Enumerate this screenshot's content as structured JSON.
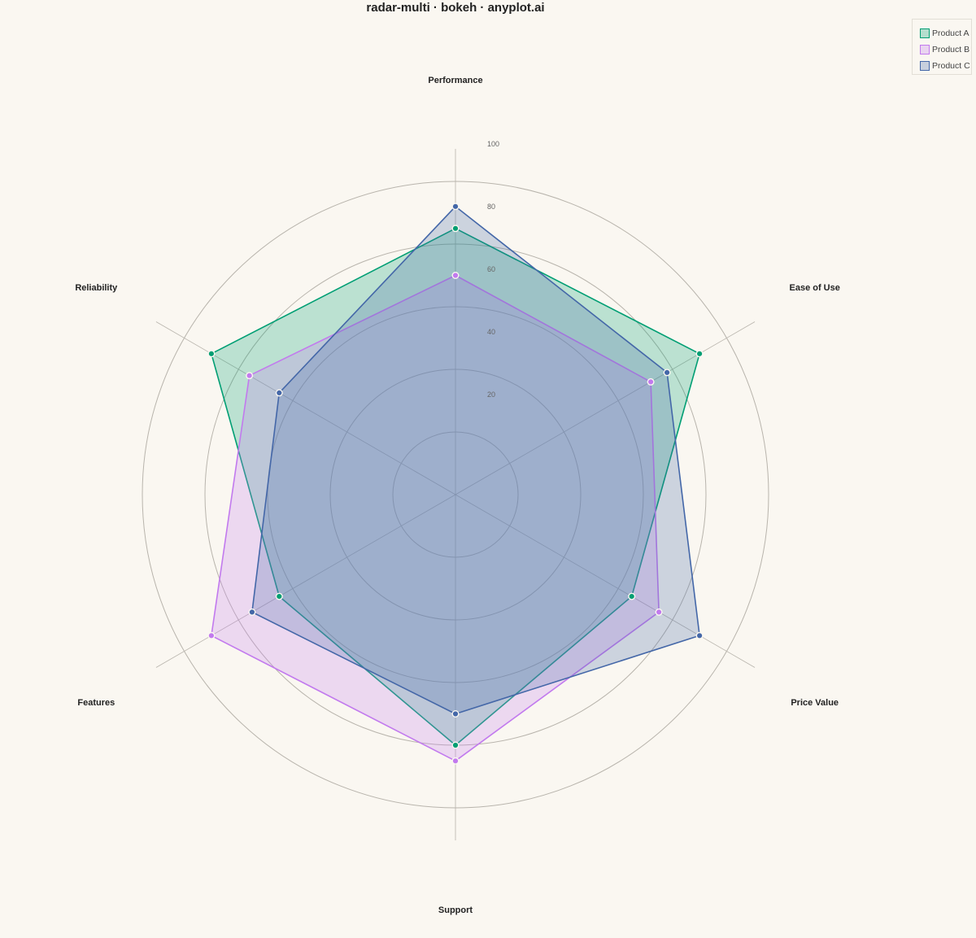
{
  "chart_data": {
    "type": "radar",
    "title": "radar-multi · bokeh · anyplot.ai",
    "axes": [
      "Performance",
      "Ease of Use",
      "Price Value",
      "Support",
      "Features",
      "Reliability"
    ],
    "rlim": [
      0,
      100
    ],
    "radial_ticks": [
      "20",
      "40",
      "60",
      "80",
      "100"
    ],
    "radial_tick_values": [
      20,
      40,
      60,
      80,
      100
    ],
    "grid": true,
    "legend_position": "top-right",
    "series": [
      {
        "name": "Product A",
        "values": [
          85,
          90,
          65,
          80,
          65,
          90
        ],
        "color": "#009E73",
        "fill": "#009E73"
      },
      {
        "name": "Product B",
        "values": [
          70,
          72,
          75,
          85,
          90,
          76
        ],
        "color": "#C27AEE",
        "fill": "#C27AEE"
      },
      {
        "name": "Product C",
        "values": [
          92,
          78,
          90,
          70,
          75,
          65
        ],
        "color": "#4467A8",
        "fill": "#4467A8"
      }
    ]
  },
  "colors": {
    "background": "#FAF7F1",
    "grid": "#B8B4AC"
  }
}
